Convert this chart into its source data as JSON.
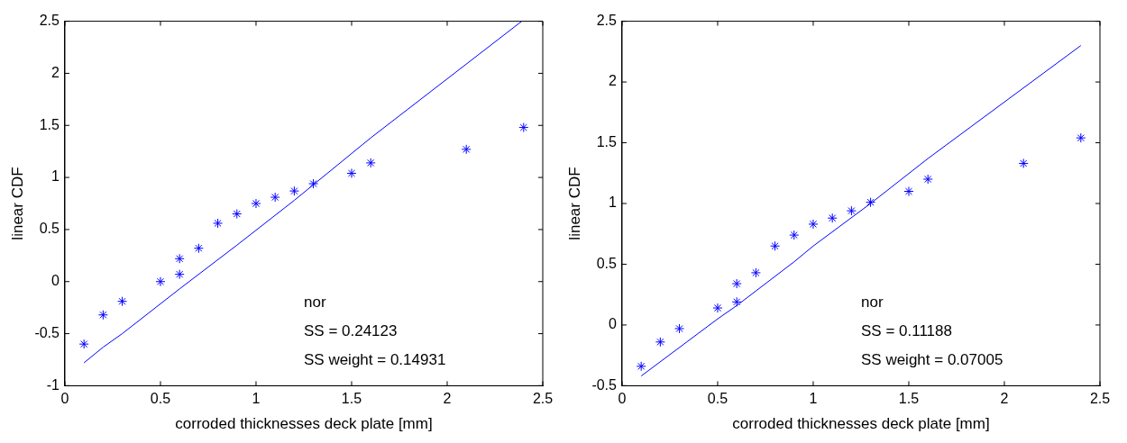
{
  "chart_data": [
    {
      "type": "scatter",
      "xlabel": "corroded thicknesses deck plate [mm]",
      "ylabel": "linear CDF",
      "xlim": [
        0,
        2.5
      ],
      "xticks": [
        0,
        0.5,
        1,
        1.5,
        2,
        2.5
      ],
      "ylim": [
        -1,
        2.5
      ],
      "yticks": [
        -1,
        -0.5,
        0,
        0.5,
        1,
        1.5,
        2,
        2.5
      ],
      "grid": false,
      "legend": false,
      "annotations": [
        "nor",
        "SS = 0.24123",
        "SS weight = 0.14931"
      ],
      "series": [
        {
          "color": "#0000ff",
          "marker": "cross",
          "x": [
            0.1,
            0.2,
            0.3,
            0.5,
            0.6,
            0.6,
            0.7,
            0.8,
            0.9,
            1.0,
            1.1,
            1.2,
            1.3,
            1.5,
            1.6,
            2.1,
            2.4
          ],
          "values": [
            -0.6,
            -0.32,
            -0.19,
            0.0,
            0.07,
            0.22,
            0.32,
            0.56,
            0.65,
            0.75,
            0.81,
            0.87,
            0.94,
            1.04,
            1.14,
            1.27,
            1.48
          ]
        },
        {
          "type": "line",
          "color": "#0000ff",
          "marker": "none",
          "line_style": "solid",
          "x": [
            0.1,
            0.2,
            0.3,
            0.6,
            0.9,
            1.2,
            1.6,
            2.39
          ],
          "values": [
            -0.78,
            -0.63,
            -0.5,
            -0.07,
            0.35,
            0.78,
            1.38,
            2.5
          ]
        }
      ]
    },
    {
      "type": "scatter",
      "xlabel": "corroded thicknesses deck plate [mm]",
      "ylabel": "linear CDF",
      "xlim": [
        0,
        2.5
      ],
      "xticks": [
        0,
        0.5,
        1,
        1.5,
        2,
        2.5
      ],
      "ylim": [
        -0.5,
        2.5
      ],
      "yticks": [
        -0.5,
        0,
        0.5,
        1,
        1.5,
        2,
        2.5
      ],
      "grid": false,
      "legend": false,
      "annotations": [
        "nor",
        "SS = 0.11188",
        "SS weight = 0.07005"
      ],
      "series": [
        {
          "color": "#0000ff",
          "marker": "cross",
          "x": [
            0.1,
            0.2,
            0.3,
            0.5,
            0.6,
            0.6,
            0.7,
            0.8,
            0.9,
            1.0,
            1.1,
            1.2,
            1.3,
            1.5,
            1.6,
            2.1,
            2.4
          ],
          "values": [
            -0.34,
            -0.14,
            -0.03,
            0.14,
            0.19,
            0.34,
            0.43,
            0.65,
            0.74,
            0.83,
            0.88,
            0.94,
            1.01,
            1.1,
            1.2,
            1.33,
            1.54
          ]
        },
        {
          "type": "line",
          "color": "#0000ff",
          "marker": "none",
          "line_style": "solid",
          "x": [
            0.1,
            0.5,
            0.6,
            0.9,
            1.0,
            1.3,
            1.6,
            2.4
          ],
          "values": [
            -0.42,
            0.05,
            0.16,
            0.52,
            0.65,
            1.0,
            1.37,
            2.3
          ]
        }
      ]
    }
  ]
}
